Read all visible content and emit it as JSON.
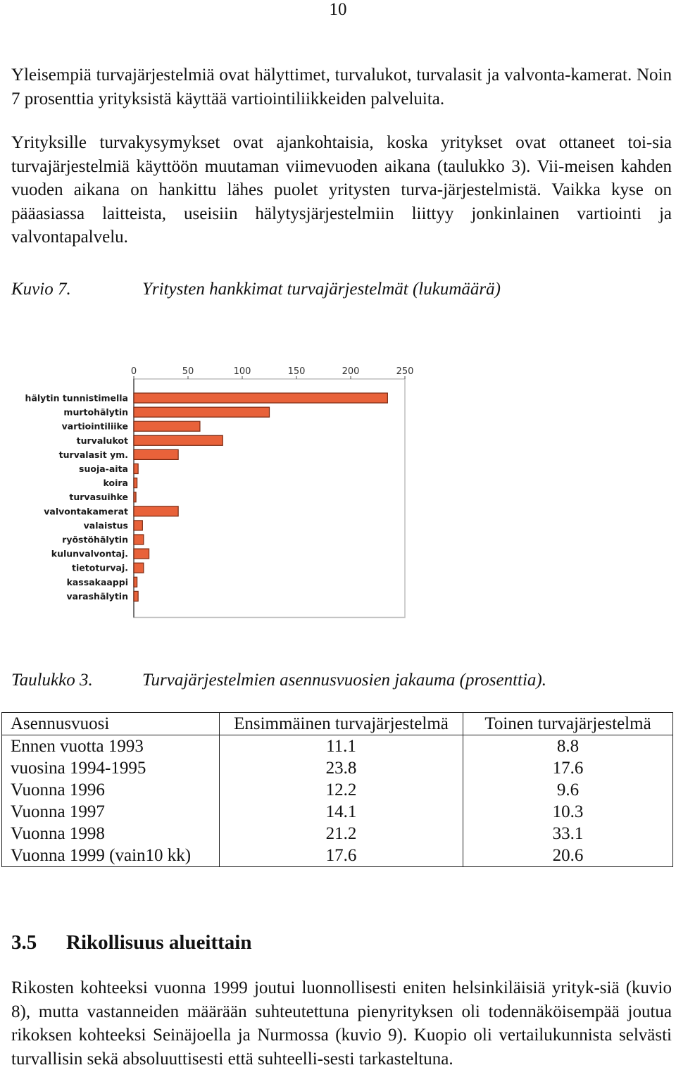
{
  "page_number": "10",
  "paragraphs": {
    "p1": "Yleisempiä turvajärjestelmiä ovat hälyttimet, turvalukot, turvalasit ja valvonta-kamerat. Noin 7 prosenttia yrityksistä käyttää vartiointiliikkeiden palveluita.",
    "p2": "Yrityksille turvakysymykset ovat ajankohtaisia, koska yritykset ovat ottaneet toi-sia turvajärjestelmiä käyttöön muutaman viimevuoden aikana (taulukko 3). Vii-meisen kahden vuoden aikana on hankittu lähes puolet yritysten turva-järjestelmistä. Vaikka kyse on pääasiassa laitteista, useisiin hälytysjärjestelmiin liittyy jonkinlainen vartiointi ja valvontapalvelu.",
    "p3": "Rikosten kohteeksi vuonna 1999 joutui luonnollisesti eniten helsinkiläisiä yrityk-siä (kuvio 8), mutta vastanneiden määrään suhteutettuna pienyrityksen oli todennäköisempää joutua rikoksen kohteeksi Seinäjoella ja Nurmossa (kuvio 9). Kuopio oli vertailukunnista selvästi turvallisin sekä absoluuttisesti että suhteelli-sesti tarkasteltuna."
  },
  "figure_caption": {
    "label": "Kuvio 7.",
    "title": "Yritysten hankkimat turvajärjestelmät (lukumäärä)"
  },
  "chart_data": {
    "type": "bar",
    "orientation": "horizontal",
    "categories": [
      "hälytin tunnistimella",
      "murtohälytin",
      "vartiointiliike",
      "turvalukot",
      "turvalasit ym.",
      "suoja-aita",
      "koira",
      "turvasuihke",
      "valvontakamerat",
      "valaistus",
      "ryöstöhälytin",
      "kulunvalvontaj.",
      "tietoturvaj.",
      "kassakaappi",
      "varashälytin"
    ],
    "values": [
      234,
      125,
      61,
      82,
      41,
      4,
      3,
      2,
      41,
      8,
      9,
      14,
      9,
      3,
      4
    ],
    "ticks": [
      "0",
      "50",
      "100",
      "150",
      "200",
      "250"
    ],
    "xlim": [
      0,
      250
    ],
    "bar_color": "#e8623a",
    "bar_edge_color": "#7a2a12",
    "grid": false,
    "title": "",
    "xlabel": "",
    "ylabel": ""
  },
  "table_caption": {
    "label": "Taulukko 3.",
    "title": "Turvajärjestelmien asennusvuosien jakauma (prosenttia)."
  },
  "table": {
    "headers": [
      "Asennusvuosi",
      "Ensimmäinen turvajärjestelmä",
      "Toinen turvajärjestelmä"
    ],
    "rows": [
      [
        "Ennen vuotta 1993",
        "11.1",
        "8.8"
      ],
      [
        "vuosina 1994-1995",
        "23.8",
        "17.6"
      ],
      [
        "Vuonna 1996",
        "12.2",
        "9.6"
      ],
      [
        "Vuonna 1997",
        "14.1",
        "10.3"
      ],
      [
        "Vuonna 1998",
        "21.2",
        "33.1"
      ],
      [
        "Vuonna 1999 (vain10 kk)",
        "17.6",
        "20.6"
      ]
    ]
  },
  "section": {
    "number": "3.5",
    "title": "Rikollisuus alueittain"
  }
}
